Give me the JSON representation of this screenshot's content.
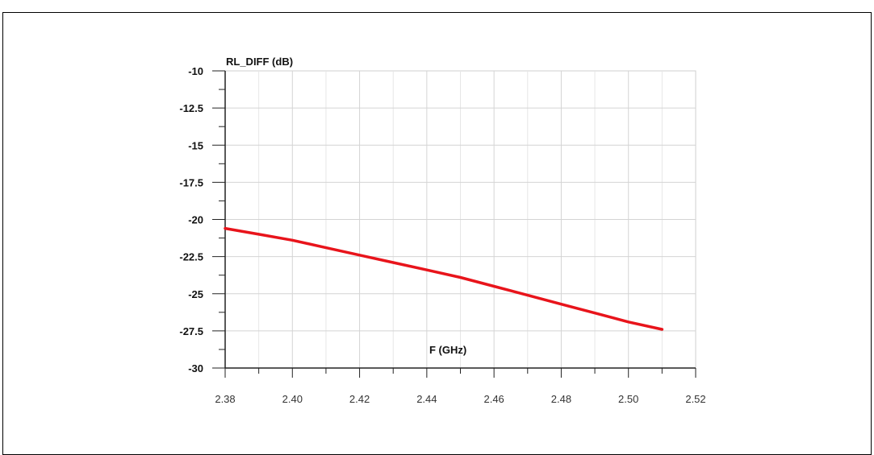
{
  "chart_data": {
    "type": "line",
    "title": "",
    "xlabel": "F (GHz)",
    "ylabel": "RL_DIFF (dB)",
    "xlim": [
      2.38,
      2.52
    ],
    "ylim": [
      -30,
      -10
    ],
    "x_ticks": [
      "2.38",
      "2.40",
      "2.42",
      "2.44",
      "2.46",
      "2.48",
      "2.50",
      "2.52"
    ],
    "y_ticks": [
      "-10",
      "-12.5",
      "-15",
      "-17.5",
      "-20",
      "-22.5",
      "-25",
      "-27.5",
      "-30"
    ],
    "grid": true,
    "series": [
      {
        "color": "#e8141b",
        "x": [
          2.38,
          2.39,
          2.4,
          2.41,
          2.42,
          2.43,
          2.44,
          2.45,
          2.46,
          2.47,
          2.48,
          2.49,
          2.5,
          2.51
        ],
        "y": [
          -20.6,
          -21.0,
          -21.4,
          -21.9,
          -22.4,
          -22.9,
          -23.4,
          -23.9,
          -24.5,
          -25.1,
          -25.7,
          -26.3,
          -26.9,
          -27.4
        ]
      }
    ]
  }
}
